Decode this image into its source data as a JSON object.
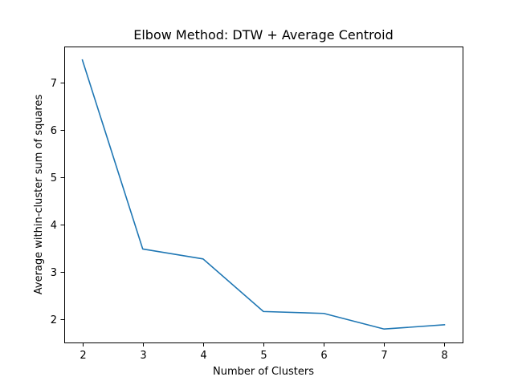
{
  "chart_data": {
    "type": "line",
    "title": "Elbow Method: DTW + Average Centroid",
    "xlabel": "Number of Clusters",
    "ylabel": "Average within-cluster sum of squares",
    "x": [
      2,
      3,
      4,
      5,
      6,
      7,
      8
    ],
    "series": [
      {
        "values": [
          7.48,
          3.49,
          3.28,
          2.17,
          2.13,
          1.8,
          1.89
        ],
        "color": "#1f77b4"
      }
    ],
    "x_ticks": [
      2,
      3,
      4,
      5,
      6,
      7,
      8
    ],
    "y_ticks": [
      2,
      3,
      4,
      5,
      6,
      7
    ],
    "xlim": [
      1.7,
      8.3
    ],
    "ylim": [
      1.516,
      7.764
    ],
    "grid": false,
    "legend": "none"
  }
}
